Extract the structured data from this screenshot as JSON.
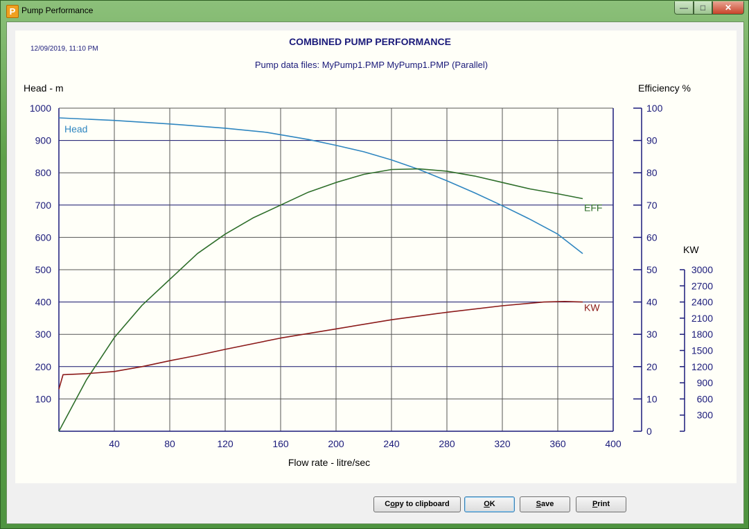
{
  "window": {
    "title": "Pump Performance",
    "app_icon_letter": "P",
    "minimize_glyph": "—",
    "maximize_glyph": "□",
    "close_glyph": "✕"
  },
  "chart_header": {
    "timestamp": "12/09/2019,  11:10 PM",
    "title": "COMBINED PUMP PERFORMANCE",
    "subtitle": "Pump data files:  MyPump1.PMP  MyPump1.PMP  (Parallel)"
  },
  "buttons": {
    "copy_pre": "C",
    "copy_ul": "o",
    "copy_post": "py to clipboard",
    "ok_pre": "",
    "ok_ul": "O",
    "ok_post": "K",
    "save_pre": "",
    "save_ul": "S",
    "save_post": "ave",
    "print_pre": "",
    "print_ul": "P",
    "print_post": "rint"
  },
  "chart_data": {
    "type": "line",
    "title": "COMBINED PUMP PERFORMANCE",
    "xlabel": "Flow rate - litre/sec",
    "xlim": [
      0,
      400
    ],
    "x_ticks": [
      "40",
      "80",
      "120",
      "160",
      "200",
      "240",
      "280",
      "320",
      "360",
      "400"
    ],
    "axes": {
      "head": {
        "label": "Head - m",
        "lim": [
          0,
          1000
        ],
        "ticks": [
          "100",
          "200",
          "300",
          "400",
          "500",
          "600",
          "700",
          "800",
          "900",
          "1000"
        ]
      },
      "efficiency": {
        "label": "Efficiency %",
        "lim": [
          0,
          100
        ],
        "ticks": [
          "0",
          "10",
          "20",
          "30",
          "40",
          "50",
          "60",
          "70",
          "80",
          "90",
          "100"
        ]
      },
      "kw": {
        "label": "KW",
        "lim": [
          0,
          3000
        ],
        "ticks": [
          "300",
          "600",
          "900",
          "1200",
          "1500",
          "1800",
          "2100",
          "2400",
          "2700",
          "3000"
        ]
      }
    },
    "grid": true,
    "series": [
      {
        "name": "Head",
        "axis": "head",
        "color": "#2f86c0",
        "x": [
          0,
          40,
          80,
          120,
          150,
          180,
          200,
          220,
          240,
          260,
          280,
          300,
          320,
          340,
          360,
          378
        ],
        "y": [
          970,
          962,
          951,
          938,
          925,
          903,
          885,
          865,
          840,
          810,
          775,
          738,
          698,
          656,
          610,
          550
        ]
      },
      {
        "name": "EFF",
        "axis": "efficiency",
        "color": "#2e6e2a",
        "x": [
          0,
          20,
          40,
          60,
          80,
          100,
          120,
          140,
          160,
          180,
          200,
          220,
          240,
          260,
          280,
          300,
          320,
          340,
          360,
          378
        ],
        "y": [
          0,
          16,
          29,
          39,
          47,
          55,
          61,
          66,
          70,
          74,
          77,
          79.5,
          81,
          81.2,
          80.5,
          79,
          77,
          75,
          73.5,
          72
        ]
      },
      {
        "name": "KW",
        "axis": "kw",
        "color": "#8b1a1a",
        "x": [
          0,
          3,
          20,
          40,
          60,
          80,
          100,
          120,
          160,
          200,
          240,
          280,
          320,
          350,
          365,
          378
        ],
        "y": [
          780,
          1050,
          1070,
          1110,
          1200,
          1310,
          1410,
          1520,
          1730,
          1900,
          2070,
          2210,
          2330,
          2400,
          2410,
          2400
        ]
      }
    ]
  }
}
